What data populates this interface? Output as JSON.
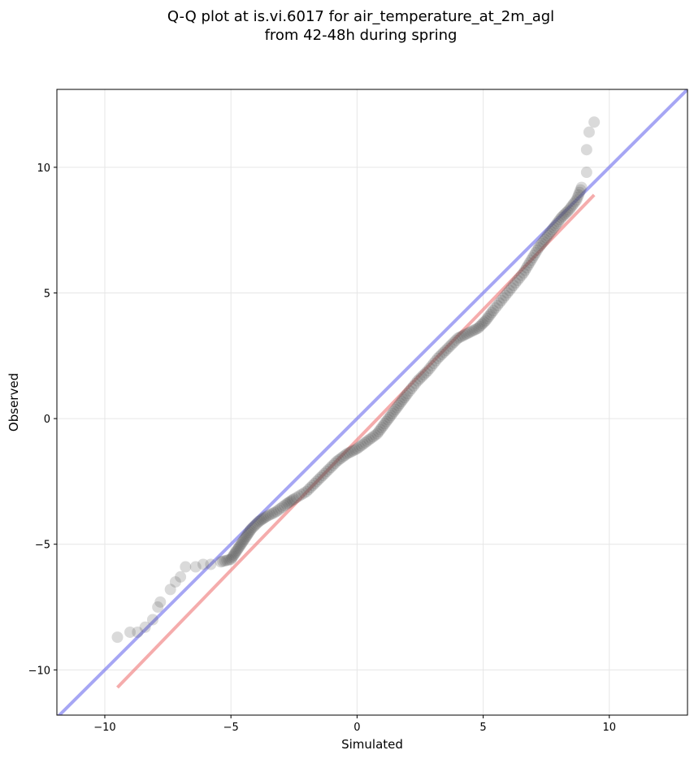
{
  "chart_data": {
    "type": "scatter",
    "title_lines": [
      "Q-Q plot at is.vi.6017 for air_temperature_at_2m_agl",
      "from 42-48h during spring"
    ],
    "xlabel": "Simulated",
    "ylabel": "Observed",
    "xlim": [
      -11.9,
      13.1
    ],
    "ylim": [
      -11.8,
      13.1
    ],
    "xticks": [
      -10,
      -5,
      0,
      5,
      10
    ],
    "yticks": [
      -10,
      -5,
      0,
      5,
      10
    ],
    "grid": true,
    "legend": "none",
    "reference_lines": [
      {
        "role": "identity",
        "color": "#7777ee",
        "x": [
          -11.9,
          13.1
        ],
        "y": [
          -11.9,
          13.1
        ]
      },
      {
        "role": "fit",
        "color": "#f08080",
        "x": [
          -9.5,
          9.4
        ],
        "y": [
          -10.7,
          8.9
        ]
      }
    ],
    "point_color": "#555555",
    "quantiles": [
      {
        "x": -9.5,
        "y": -8.7
      },
      {
        "x": -9.0,
        "y": -8.5
      },
      {
        "x": -8.7,
        "y": -8.5
      },
      {
        "x": -8.4,
        "y": -8.3
      },
      {
        "x": -8.1,
        "y": -8.0
      },
      {
        "x": -7.9,
        "y": -7.5
      },
      {
        "x": -7.8,
        "y": -7.3
      },
      {
        "x": -7.4,
        "y": -6.8
      },
      {
        "x": -7.2,
        "y": -6.5
      },
      {
        "x": -7.0,
        "y": -6.3
      },
      {
        "x": -6.8,
        "y": -5.9
      },
      {
        "x": -6.4,
        "y": -5.9
      },
      {
        "x": -6.1,
        "y": -5.8
      },
      {
        "x": -5.8,
        "y": -5.8
      },
      {
        "x": -5.4,
        "y": -5.7
      },
      {
        "x": -5.0,
        "y": -5.6
      },
      {
        "x": -4.8,
        "y": -5.3
      },
      {
        "x": -4.6,
        "y": -5.0
      },
      {
        "x": -4.4,
        "y": -4.7
      },
      {
        "x": -4.2,
        "y": -4.4
      },
      {
        "x": -3.9,
        "y": -4.1
      },
      {
        "x": -3.6,
        "y": -3.9
      },
      {
        "x": -3.2,
        "y": -3.7
      },
      {
        "x": -2.8,
        "y": -3.4
      },
      {
        "x": -2.5,
        "y": -3.2
      },
      {
        "x": -2.0,
        "y": -2.9
      },
      {
        "x": -1.6,
        "y": -2.5
      },
      {
        "x": -1.2,
        "y": -2.1
      },
      {
        "x": -0.8,
        "y": -1.7
      },
      {
        "x": -0.4,
        "y": -1.4
      },
      {
        "x": 0.0,
        "y": -1.2
      },
      {
        "x": 0.4,
        "y": -0.9
      },
      {
        "x": 0.8,
        "y": -0.6
      },
      {
        "x": 1.1,
        "y": -0.2
      },
      {
        "x": 1.4,
        "y": 0.2
      },
      {
        "x": 1.7,
        "y": 0.6
      },
      {
        "x": 2.0,
        "y": 1.0
      },
      {
        "x": 2.4,
        "y": 1.5
      },
      {
        "x": 2.8,
        "y": 1.9
      },
      {
        "x": 3.2,
        "y": 2.4
      },
      {
        "x": 3.6,
        "y": 2.8
      },
      {
        "x": 4.0,
        "y": 3.2
      },
      {
        "x": 4.4,
        "y": 3.4
      },
      {
        "x": 4.8,
        "y": 3.6
      },
      {
        "x": 5.1,
        "y": 3.9
      },
      {
        "x": 5.4,
        "y": 4.3
      },
      {
        "x": 5.8,
        "y": 4.8
      },
      {
        "x": 6.2,
        "y": 5.3
      },
      {
        "x": 6.6,
        "y": 5.8
      },
      {
        "x": 6.9,
        "y": 6.3
      },
      {
        "x": 7.2,
        "y": 6.8
      },
      {
        "x": 7.5,
        "y": 7.2
      },
      {
        "x": 7.8,
        "y": 7.6
      },
      {
        "x": 8.1,
        "y": 8.0
      },
      {
        "x": 8.4,
        "y": 8.3
      },
      {
        "x": 8.7,
        "y": 8.7
      },
      {
        "x": 8.9,
        "y": 9.2
      },
      {
        "x": 9.1,
        "y": 9.8
      },
      {
        "x": 9.1,
        "y": 10.7
      },
      {
        "x": 9.2,
        "y": 11.4
      },
      {
        "x": 9.4,
        "y": 11.8
      }
    ]
  }
}
